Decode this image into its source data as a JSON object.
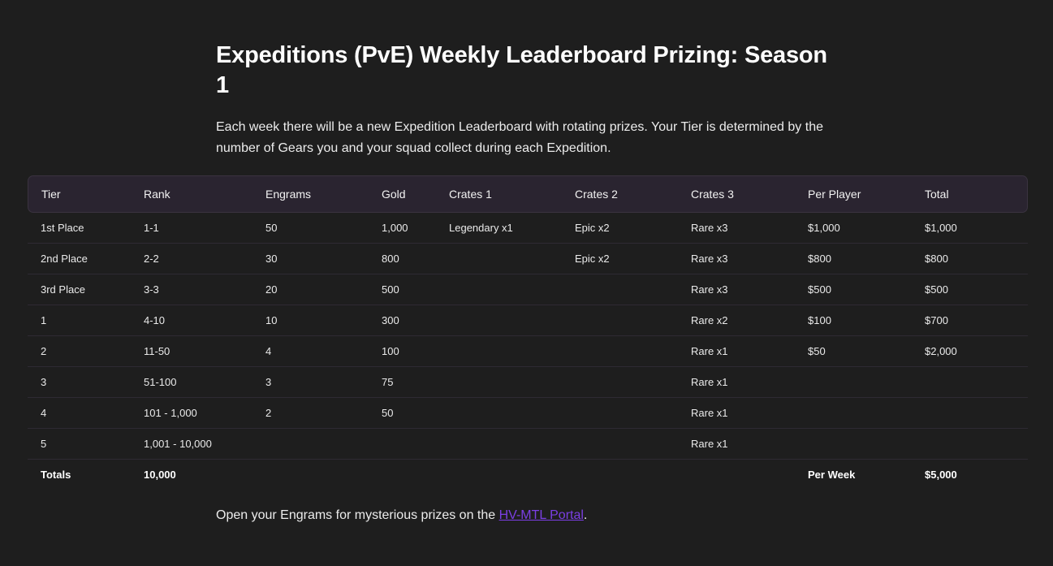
{
  "title": "Expeditions (PvE) Weekly Leaderboard Prizing: Season 1",
  "intro": "Each week there will be a new Expedition Leaderboard with rotating prizes. Your Tier is determined by the number of Gears you and your squad collect during each Expedition.",
  "table": {
    "headers": [
      "Tier",
      "Rank",
      "Engrams",
      "Gold",
      "Crates 1",
      "Crates 2",
      "Crates 3",
      "Per Player",
      "Total"
    ],
    "rows": [
      [
        "1st Place",
        "1-1",
        "50",
        "1,000",
        "Legendary x1",
        "Epic x2",
        "Rare x3",
        "$1,000",
        "$1,000"
      ],
      [
        "2nd Place",
        "2-2",
        "30",
        "800",
        "",
        "Epic x2",
        "Rare x3",
        "$800",
        "$800"
      ],
      [
        "3rd Place",
        "3-3",
        "20",
        "500",
        "",
        "",
        "Rare x3",
        "$500",
        "$500"
      ],
      [
        "1",
        "4-10",
        "10",
        "300",
        "",
        "",
        "Rare x2",
        "$100",
        "$700"
      ],
      [
        "2",
        "11-50",
        "4",
        "100",
        "",
        "",
        "Rare x1",
        "$50",
        "$2,000"
      ],
      [
        "3",
        "51-100",
        "3",
        "75",
        "",
        "",
        "Rare x1",
        "",
        ""
      ],
      [
        "4",
        "101 - 1,000",
        "2",
        "50",
        "",
        "",
        "Rare x1",
        "",
        ""
      ],
      [
        "5",
        "1,001 - 10,000",
        "",
        "",
        "",
        "",
        "Rare x1",
        "",
        ""
      ]
    ],
    "totals": [
      "Totals",
      "10,000",
      "",
      "",
      "",
      "",
      "",
      "Per Week",
      "$5,000"
    ]
  },
  "footer": {
    "text_before": "Open your Engrams for mysterious prizes on the ",
    "link_label": "HV-MTL Portal",
    "text_after": "."
  },
  "colors": {
    "background": "#1e1e1e",
    "header_row": "#2a2430",
    "link": "#7b3fe4"
  }
}
